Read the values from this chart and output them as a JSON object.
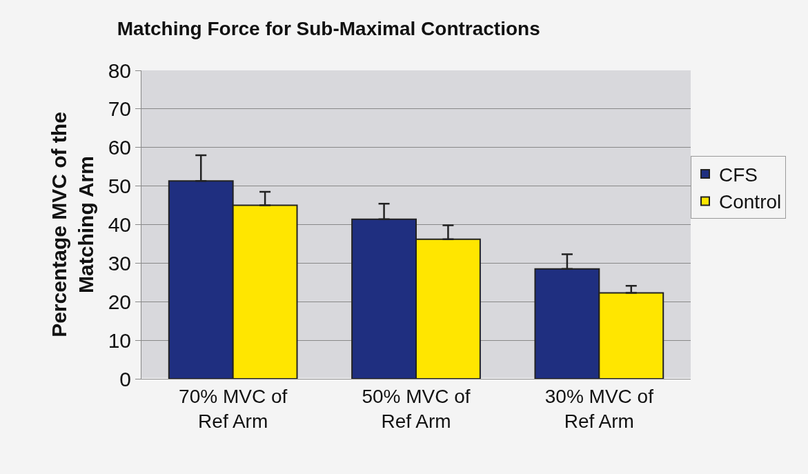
{
  "chart_data": {
    "type": "bar",
    "title": "Matching Force for Sub-Maximal Contractions",
    "ylabel": "Percentage MVC of the\nMatching Arm",
    "categories": [
      "70% MVC of\nRef Arm",
      "50% MVC of\nRef Arm",
      "30% MVC of\nRef Arm"
    ],
    "series": [
      {
        "name": "CFS",
        "color": "#1f2f80",
        "values": [
          51.3,
          41.4,
          28.5
        ],
        "errors": [
          [
            51.3,
            58.0
          ],
          [
            41.4,
            45.4
          ],
          [
            28.5,
            32.3
          ]
        ]
      },
      {
        "name": "Control",
        "color": "#ffe600",
        "values": [
          45.0,
          36.2,
          22.3
        ],
        "errors": [
          [
            45.0,
            48.5
          ],
          [
            36.2,
            39.8
          ],
          [
            22.3,
            24.1
          ]
        ]
      }
    ],
    "ylim": [
      0,
      80
    ],
    "yticks": [
      0,
      10,
      20,
      30,
      40,
      50,
      60,
      70,
      80
    ],
    "grid": "y",
    "legend": "right"
  }
}
